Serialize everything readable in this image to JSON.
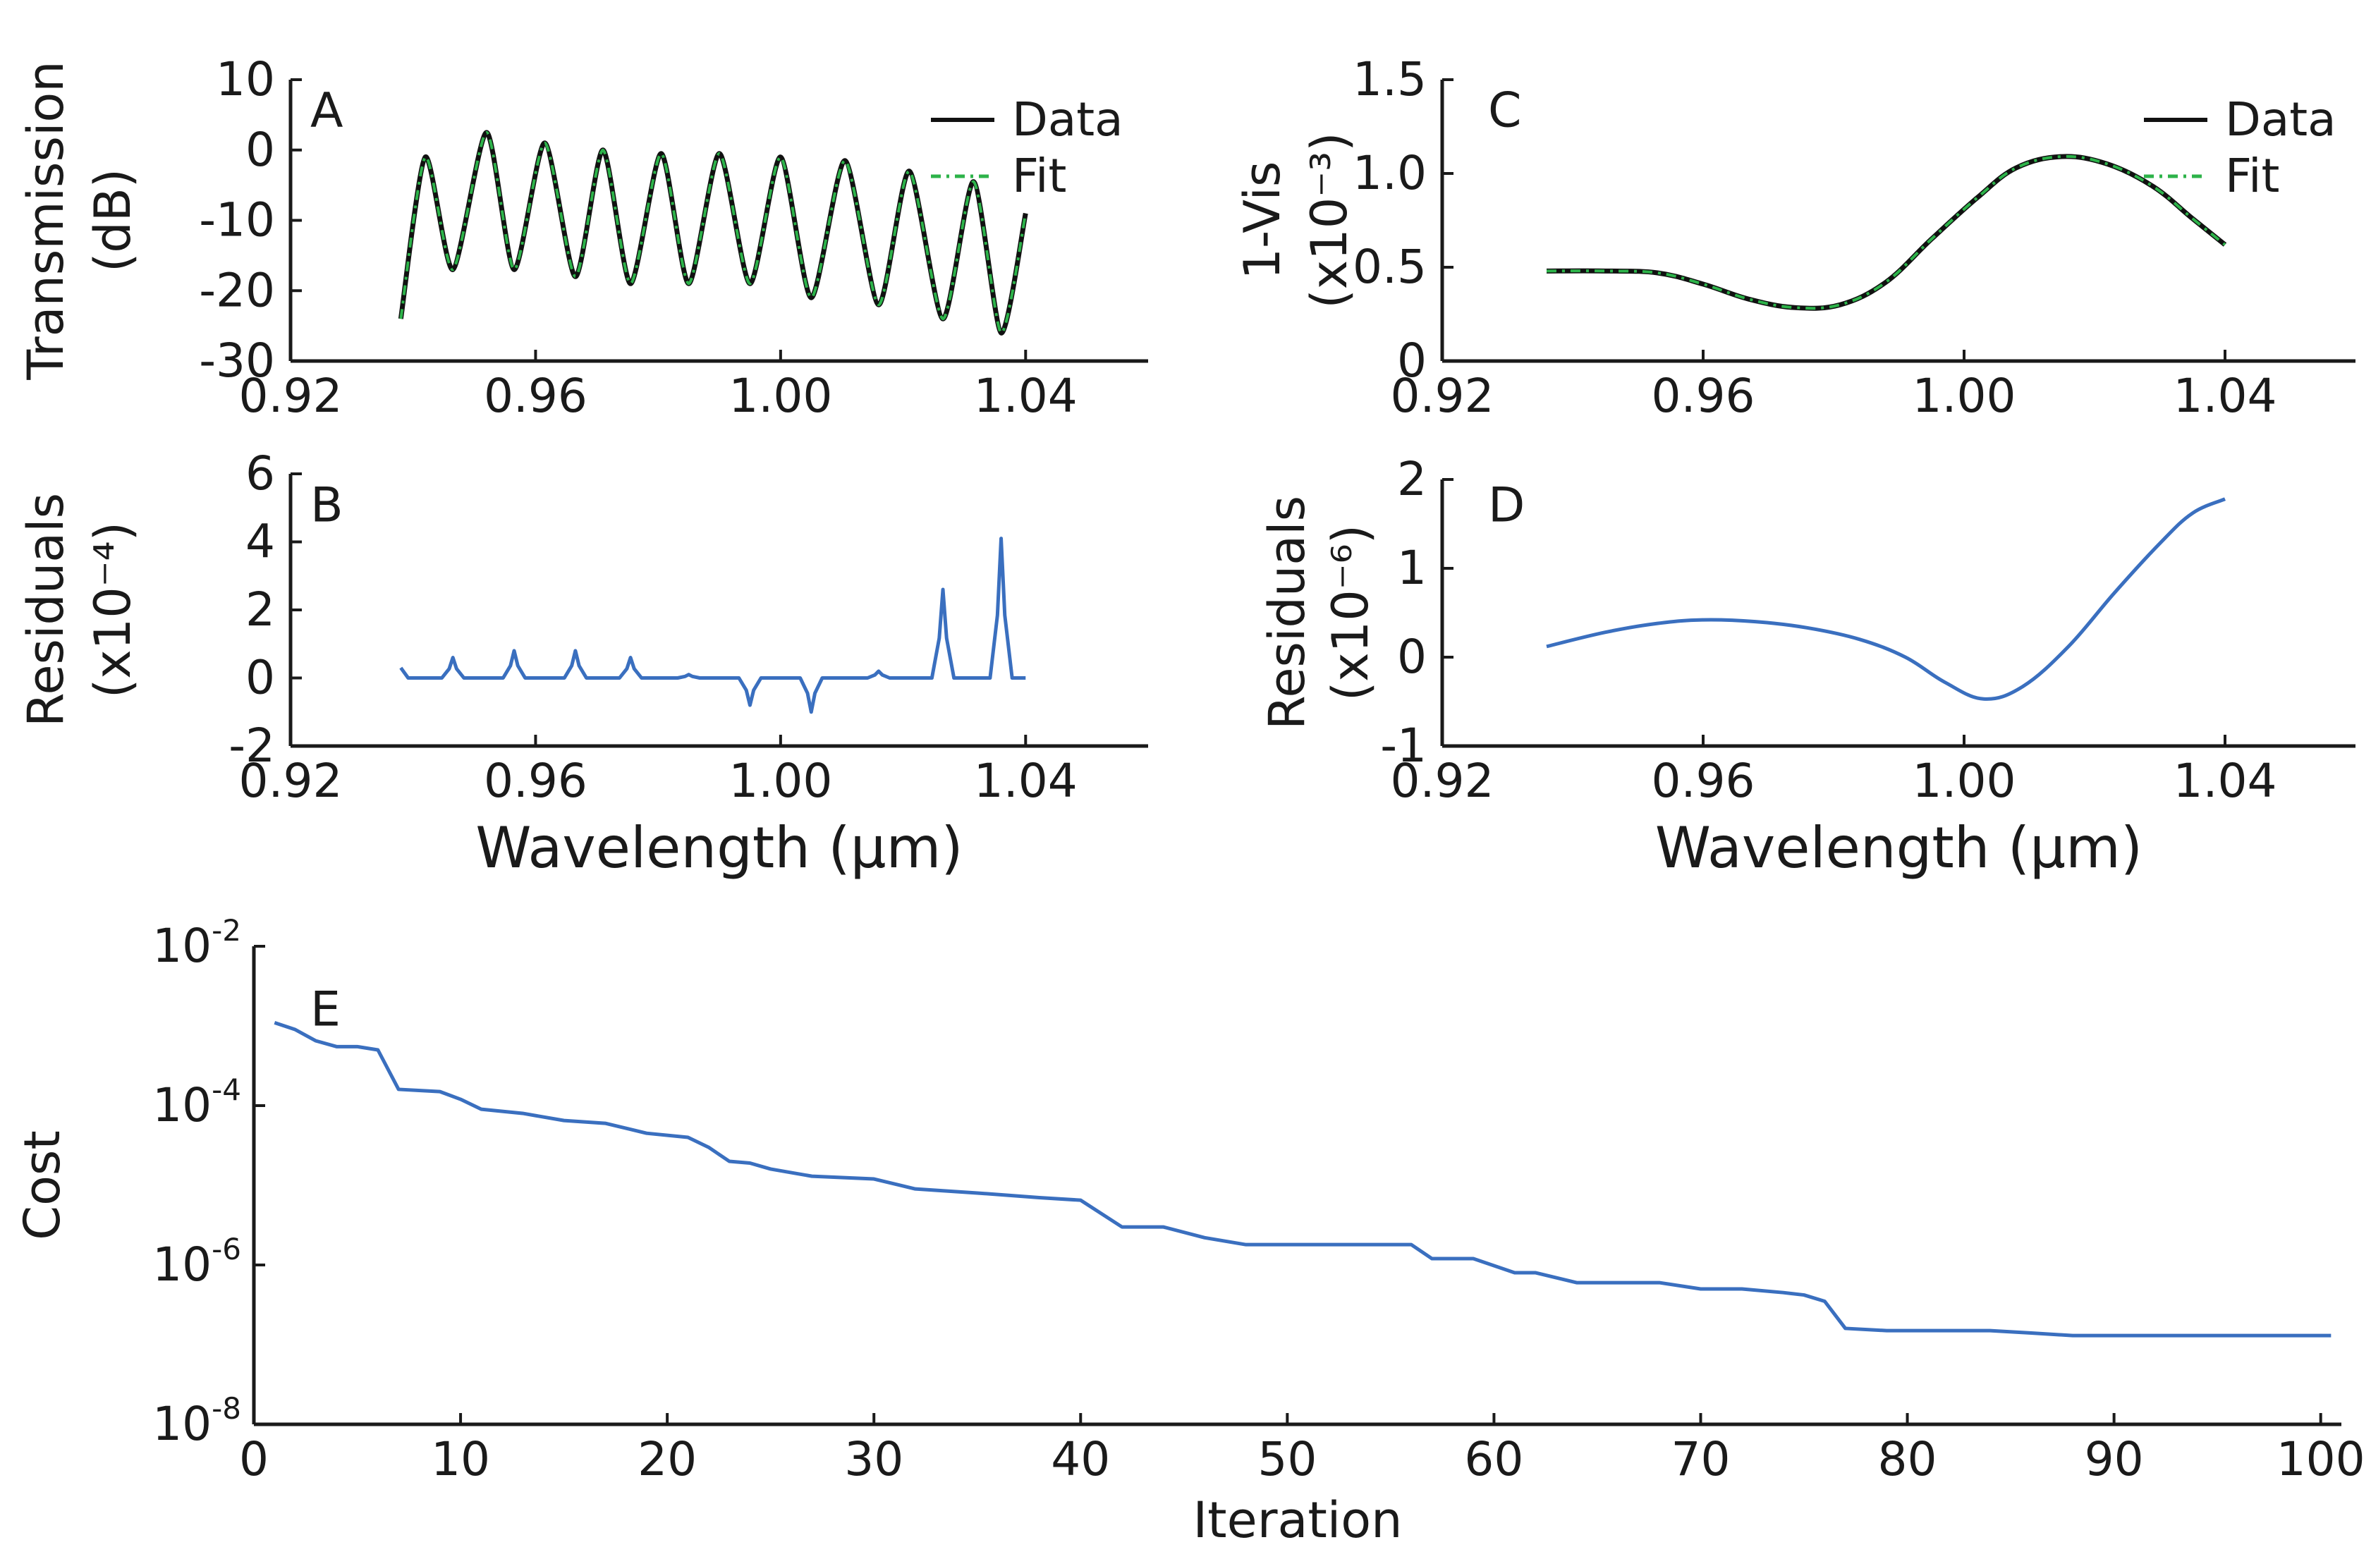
{
  "chart_data": [
    {
      "panel": "A",
      "type": "line",
      "ylabel": "Transmission",
      "ylabel2": "(dB)",
      "xlim": [
        0.92,
        1.06
      ],
      "ylim": [
        -30,
        10
      ],
      "xticks": [
        "0.92",
        "0.96",
        "1.00",
        "1.04"
      ],
      "xtick_values": [
        0.92,
        0.96,
        1.0,
        1.04
      ],
      "yticks": [
        "10",
        "0",
        "-10",
        "-20",
        "-30"
      ],
      "ytick_values": [
        10,
        0,
        -10,
        -20,
        -30
      ],
      "legend": [
        "Data",
        "Fit"
      ],
      "legend_colors": [
        "#111111",
        "#2db34a"
      ],
      "series": [
        {
          "name": "Data",
          "color": "#111111",
          "x": [
            0.938,
            0.942,
            0.9465,
            0.952,
            0.9565,
            0.9615,
            0.9665,
            0.971,
            0.9755,
            0.9805,
            0.985,
            0.99,
            0.995,
            1.0,
            1.005,
            1.0105,
            1.016,
            1.021,
            1.0265,
            1.0315,
            1.036,
            1.04
          ],
          "y": [
            -24,
            -1,
            -17,
            2.5,
            -17,
            1,
            -18,
            0,
            -19,
            -0.5,
            -19,
            -0.5,
            -19,
            -1,
            -21,
            -1.5,
            -22,
            -3,
            -24,
            -4.5,
            -26,
            -9
          ]
        },
        {
          "name": "Fit",
          "color": "#2db34a",
          "x": [
            0.938,
            0.942,
            0.9465,
            0.952,
            0.9565,
            0.9615,
            0.9665,
            0.971,
            0.9755,
            0.9805,
            0.985,
            0.99,
            0.995,
            1.0,
            1.005,
            1.0105,
            1.016,
            1.021,
            1.0265,
            1.0315,
            1.036,
            1.04
          ],
          "y": [
            -24,
            -1,
            -17,
            2.5,
            -17,
            1,
            -18,
            0,
            -19,
            -0.5,
            -19,
            -0.5,
            -19,
            -1,
            -21,
            -1.5,
            -22,
            -3,
            -24,
            -4.5,
            -26,
            -9
          ]
        }
      ]
    },
    {
      "panel": "B",
      "type": "line",
      "ylabel": "Residuals",
      "ylabel2": "(x10⁻⁴)",
      "xlabel": "Wavelength (μm)",
      "xlim": [
        0.92,
        1.06
      ],
      "ylim": [
        -2,
        6
      ],
      "xticks": [
        "0.92",
        "0.96",
        "1.00",
        "1.04"
      ],
      "xtick_values": [
        0.92,
        0.96,
        1.0,
        1.04
      ],
      "yticks": [
        "6",
        "4",
        "2",
        "0",
        "-2"
      ],
      "ytick_values": [
        6,
        4,
        2,
        0,
        -2
      ],
      "series": [
        {
          "name": "Residuals",
          "color": "#3a6fbf",
          "baseline_x": [
            0.938,
            1.04
          ],
          "baseline_y": [
            0.0,
            0.0
          ],
          "peaks_x": [
            0.938,
            0.9465,
            0.9565,
            0.9665,
            0.9755,
            0.985,
            0.995,
            1.005,
            1.016,
            1.0265,
            1.036
          ],
          "peaks_y": [
            0.3,
            0.6,
            0.8,
            0.8,
            0.6,
            0.1,
            -0.8,
            -1.0,
            0.2,
            2.6,
            4.1
          ]
        }
      ]
    },
    {
      "panel": "C",
      "type": "line",
      "ylabel": "1-Vis",
      "ylabel2": "(x10⁻³)",
      "xlim": [
        0.92,
        1.06
      ],
      "ylim": [
        0,
        1.5
      ],
      "xticks": [
        "0.92",
        "0.96",
        "1.00",
        "1.04"
      ],
      "xtick_values": [
        0.92,
        0.96,
        1.0,
        1.04
      ],
      "yticks": [
        "1.5",
        "1.0",
        "0.5",
        "0"
      ],
      "ytick_values": [
        1.5,
        1.0,
        0.5,
        0
      ],
      "legend": [
        "Data",
        "Fit"
      ],
      "legend_colors": [
        "#111111",
        "#2db34a"
      ],
      "series": [
        {
          "name": "Data",
          "color": "#111111",
          "x": [
            0.936,
            0.945,
            0.953,
            0.96,
            0.967,
            0.974,
            0.981,
            0.988,
            0.995,
            1.002,
            1.008,
            1.015,
            1.022,
            1.029,
            1.035,
            1.04
          ],
          "y": [
            0.48,
            0.48,
            0.47,
            0.41,
            0.33,
            0.285,
            0.3,
            0.42,
            0.65,
            0.87,
            1.03,
            1.09,
            1.05,
            0.93,
            0.76,
            0.62
          ]
        },
        {
          "name": "Fit",
          "color": "#2db34a",
          "x": [
            0.936,
            0.945,
            0.953,
            0.96,
            0.967,
            0.974,
            0.981,
            0.988,
            0.995,
            1.002,
            1.008,
            1.015,
            1.022,
            1.029,
            1.035,
            1.04
          ],
          "y": [
            0.48,
            0.48,
            0.47,
            0.41,
            0.33,
            0.285,
            0.3,
            0.42,
            0.65,
            0.87,
            1.03,
            1.09,
            1.05,
            0.93,
            0.76,
            0.62
          ]
        }
      ]
    },
    {
      "panel": "D",
      "type": "line",
      "ylabel": "Residuals",
      "ylabel2": "(x10⁻⁶)",
      "xlabel": "Wavelength (μm)",
      "xlim": [
        0.92,
        1.06
      ],
      "ylim": [
        -1,
        2
      ],
      "xticks": [
        "0.92",
        "0.96",
        "1.00",
        "1.04"
      ],
      "xtick_values": [
        0.92,
        0.96,
        1.0,
        1.04
      ],
      "yticks": [
        "2",
        "1",
        "0",
        "-1"
      ],
      "ytick_values": [
        2,
        1,
        0,
        -1
      ],
      "series": [
        {
          "name": "Residuals",
          "color": "#3a6fbf",
          "x": [
            0.936,
            0.945,
            0.953,
            0.96,
            0.968,
            0.976,
            0.984,
            0.991,
            0.997,
            1.003,
            1.009,
            1.016,
            1.023,
            1.03,
            1.035,
            1.04
          ],
          "y": [
            0.12,
            0.28,
            0.38,
            0.42,
            0.4,
            0.33,
            0.2,
            0.0,
            -0.28,
            -0.47,
            -0.33,
            0.12,
            0.72,
            1.28,
            1.62,
            1.78
          ]
        }
      ]
    },
    {
      "panel": "E",
      "type": "line",
      "ylabel": "Cost",
      "xlabel": "Iteration",
      "xlim": [
        0,
        101
      ],
      "ylim": [
        1e-08,
        0.01
      ],
      "yscale": "log",
      "xticks": [
        "0",
        "10",
        "20",
        "30",
        "40",
        "50",
        "60",
        "70",
        "80",
        "90",
        "100"
      ],
      "xtick_values": [
        0,
        10,
        20,
        30,
        40,
        50,
        60,
        70,
        80,
        90,
        100
      ],
      "yticks_base": [
        "10",
        "10",
        "10",
        "10"
      ],
      "yticks_exp": [
        "-2",
        "-4",
        "-6",
        "-8"
      ],
      "ytick_values": [
        0.01,
        0.0001,
        1e-06,
        1e-08
      ],
      "series": [
        {
          "name": "Cost",
          "color": "#3a6fbf",
          "x": [
            1,
            2,
            3,
            4,
            5,
            6,
            7,
            9,
            10,
            11,
            13,
            15,
            17,
            19,
            21,
            22,
            23,
            24,
            25,
            27,
            30,
            32,
            35,
            38,
            40,
            42,
            44,
            46,
            48,
            50,
            52,
            54,
            56,
            57,
            59,
            61,
            62,
            64,
            66,
            68,
            70,
            72,
            74,
            75,
            76,
            77,
            79,
            80,
            82,
            84,
            86,
            88,
            90,
            92,
            94,
            96,
            98,
            100.5
          ],
          "y": [
            0.0011,
            0.0009,
            0.00065,
            0.00055,
            0.00055,
            0.0005,
            0.00016,
            0.00015,
            0.00012,
            9e-05,
            8e-05,
            6.5e-05,
            6e-05,
            4.5e-05,
            4e-05,
            3e-05,
            2e-05,
            1.9e-05,
            1.6e-05,
            1.3e-05,
            1.2e-05,
            9e-06,
            8e-06,
            7e-06,
            6.5e-06,
            3e-06,
            3e-06,
            2.2e-06,
            1.8e-06,
            1.8e-06,
            1.8e-06,
            1.8e-06,
            1.8e-06,
            1.2e-06,
            1.2e-06,
            8e-07,
            8e-07,
            6e-07,
            6e-07,
            6e-07,
            5e-07,
            5e-07,
            4.5e-07,
            4.2e-07,
            3.5e-07,
            1.6e-07,
            1.5e-07,
            1.5e-07,
            1.5e-07,
            1.5e-07,
            1.4e-07,
            1.3e-07,
            1.3e-07,
            1.3e-07,
            1.3e-07,
            1.3e-07,
            1.3e-07,
            1.3e-07
          ]
        }
      ]
    }
  ]
}
